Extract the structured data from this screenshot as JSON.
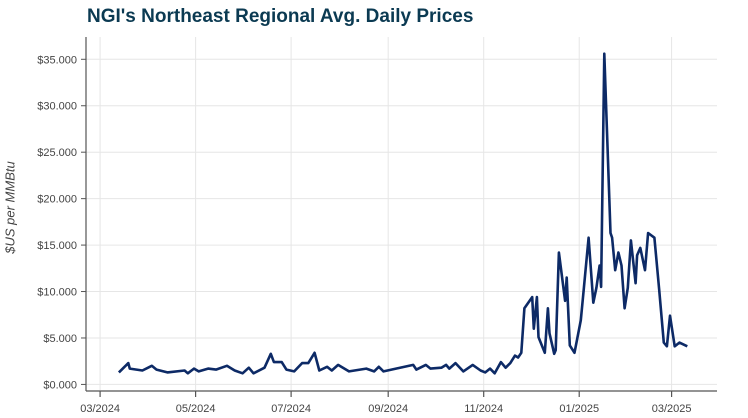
{
  "chart_data": {
    "type": "line",
    "title": "NGI's Northeast Regional Avg. Daily Prices",
    "ylabel": "$US per MMBtu",
    "xlabel": "",
    "ylim": [
      -0.6,
      37.4
    ],
    "xlim": [
      "2024-02-21",
      "2025-03-30"
    ],
    "grid": true,
    "line_color": "#0d2a66",
    "y_ticks": [
      0,
      5,
      10,
      15,
      20,
      25,
      30,
      35
    ],
    "y_tick_labels": [
      "$0.000",
      "$5.000",
      "$10.000",
      "$15.000",
      "$20.000",
      "$25.000",
      "$30.000",
      "$35.000"
    ],
    "x_ticks": [
      "2024-03-01",
      "2024-05-01",
      "2024-07-01",
      "2024-09-01",
      "2024-11-01",
      "2025-01-01",
      "2025-03-01"
    ],
    "x_tick_labels": [
      "03/2024",
      "05/2024",
      "07/2024",
      "09/2024",
      "11/2024",
      "01/2025",
      "03/2025"
    ],
    "series": [
      {
        "x": [
          "2024-03-13",
          "2024-03-19",
          "2024-03-20",
          "2024-03-28",
          "2024-04-03",
          "2024-04-06",
          "2024-04-13",
          "2024-04-24",
          "2024-04-26",
          "2024-04-30",
          "2024-05-03",
          "2024-05-09",
          "2024-05-14",
          "2024-05-21",
          "2024-05-26",
          "2024-05-31",
          "2024-06-04",
          "2024-06-07",
          "2024-06-14",
          "2024-06-18",
          "2024-06-20",
          "2024-06-25",
          "2024-06-28",
          "2024-07-03",
          "2024-07-08",
          "2024-07-12",
          "2024-07-16",
          "2024-07-19",
          "2024-07-24",
          "2024-07-27",
          "2024-07-31",
          "2024-08-07",
          "2024-08-18",
          "2024-08-23",
          "2024-08-26",
          "2024-08-29",
          "2024-09-06",
          "2024-09-17",
          "2024-09-19",
          "2024-09-25",
          "2024-09-28",
          "2024-10-05",
          "2024-10-08",
          "2024-10-10",
          "2024-10-14",
          "2024-10-19",
          "2024-10-25",
          "2024-10-30",
          "2024-11-02",
          "2024-11-05",
          "2024-11-08",
          "2024-11-12",
          "2024-11-15",
          "2024-11-18",
          "2024-11-21",
          "2024-11-23",
          "2024-11-25",
          "2024-11-27",
          "2024-12-02",
          "2024-12-03",
          "2024-12-05",
          "2024-12-06",
          "2024-12-10",
          "2024-12-12",
          "2024-12-13",
          "2024-12-16",
          "2024-12-17",
          "2024-12-19",
          "2024-12-23",
          "2024-12-24",
          "2024-12-26",
          "2024-12-29",
          "2025-01-02",
          "2025-01-04",
          "2025-01-07",
          "2025-01-10",
          "2025-01-12",
          "2025-01-14",
          "2025-01-15",
          "2025-01-17",
          "2025-01-21",
          "2025-01-22",
          "2025-01-24",
          "2025-01-26",
          "2025-01-28",
          "2025-01-30",
          "2025-02-01",
          "2025-02-03",
          "2025-02-06",
          "2025-02-07",
          "2025-02-09",
          "2025-02-12",
          "2025-02-14",
          "2025-02-18",
          "2025-02-21",
          "2025-02-24",
          "2025-02-26",
          "2025-02-28",
          "2025-03-03",
          "2025-03-06",
          "2025-03-11"
        ],
        "values": [
          1.3,
          2.3,
          1.7,
          1.5,
          2.0,
          1.6,
          1.3,
          1.5,
          1.2,
          1.7,
          1.4,
          1.7,
          1.6,
          2.0,
          1.5,
          1.2,
          1.8,
          1.2,
          1.8,
          3.3,
          2.4,
          2.4,
          1.6,
          1.4,
          2.3,
          2.3,
          3.4,
          1.5,
          1.9,
          1.5,
          2.1,
          1.4,
          1.7,
          1.4,
          1.9,
          1.4,
          1.7,
          2.1,
          1.6,
          2.1,
          1.7,
          1.8,
          2.1,
          1.7,
          2.3,
          1.4,
          2.1,
          1.5,
          1.3,
          1.7,
          1.2,
          2.4,
          1.8,
          2.3,
          3.1,
          2.9,
          3.4,
          8.2,
          9.4,
          6.0,
          9.4,
          5.1,
          3.4,
          8.2,
          5.5,
          3.3,
          3.7,
          14.2,
          9.0,
          11.5,
          4.2,
          3.4,
          6.9,
          10.4,
          15.8,
          8.8,
          10.4,
          12.8,
          10.5,
          35.6,
          16.3,
          15.8,
          12.3,
          14.2,
          12.8,
          8.2,
          10.4,
          15.5,
          10.9,
          13.9,
          14.7,
          12.3,
          16.3,
          15.8,
          10.3,
          4.5,
          4.1,
          7.4,
          4.1,
          4.5,
          4.1
        ]
      }
    ]
  }
}
